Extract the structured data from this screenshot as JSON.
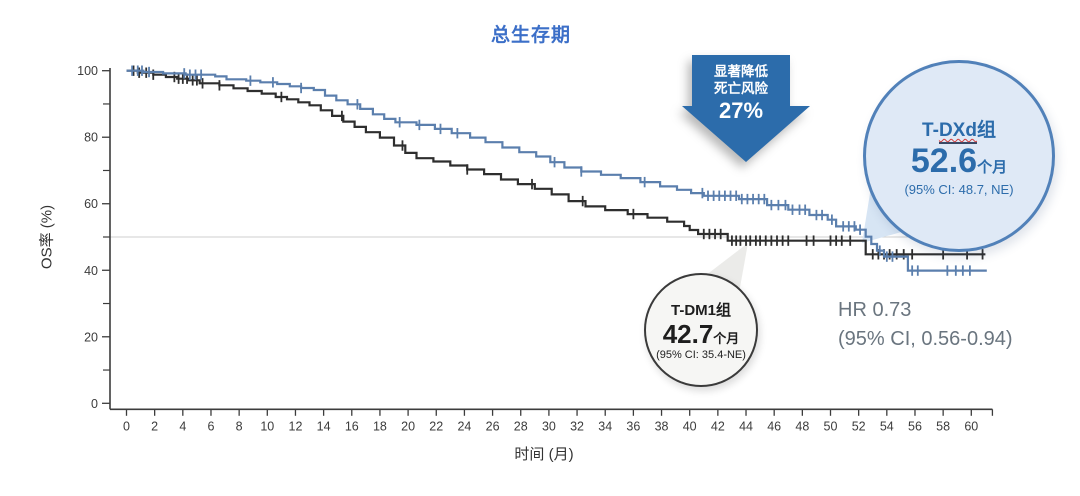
{
  "title": "总生存期",
  "colors": {
    "title": "#3c6fc8",
    "tdxd_curve": "#5b7fad",
    "tdm1_curve": "#2e2e2e",
    "arrow": "#2c6cab",
    "reference_line": "#cfcfcf",
    "axis": "#3c3c3c",
    "hr_text": "#6a757f",
    "tdxd_circle_fill": "#dfe9f6",
    "tdxd_circle_border": "#5181b9",
    "tdm1_circle_fill": "#f6f6f4",
    "tdm1_circle_border": "#3a3a3a",
    "tdxd_callout": "#d7e5f4",
    "tdm1_callout": "#ebebe9"
  },
  "annotations": {
    "arrow": {
      "line1": "显著降低",
      "line2": "死亡风险",
      "line3": "27%"
    },
    "tdxd_circle": {
      "label_prefix": "T-",
      "label_mid": "DXd",
      "label_suffix": "组",
      "value": "52.6",
      "unit": "个月",
      "ci": "(95% CI: 48.7, NE)"
    },
    "tdm1_circle": {
      "label": "T-DM1组",
      "value": "42.7",
      "unit": "个月",
      "ci": "(95% CI: 35.4-NE)"
    },
    "hr": {
      "line1": "HR 0.73",
      "line2": "(95% CI, 0.56-0.94)"
    }
  },
  "chart_data": {
    "type": "line",
    "subtype": "kaplan-meier-step",
    "title": "总生存期",
    "xlabel": "时间 (月)",
    "ylabel": "OS率 (%)",
    "xlim": [
      0,
      61.5
    ],
    "ylim": [
      0,
      100
    ],
    "x_ticks": [
      0,
      2,
      4,
      6,
      8,
      10,
      12,
      14,
      16,
      18,
      20,
      22,
      24,
      26,
      28,
      30,
      32,
      34,
      36,
      38,
      40,
      42,
      44,
      46,
      48,
      50,
      52,
      54,
      56,
      58,
      60
    ],
    "y_ticks_major": [
      0,
      20,
      40,
      60,
      80,
      100
    ],
    "y_ticks_minor": [
      10,
      30,
      50,
      70,
      90
    ],
    "grid": false,
    "reference_line_y": 50,
    "legend_position": "none",
    "series": [
      {
        "name": "T-DXd",
        "median_months": 52.6,
        "median_ci": "48.7, NE",
        "color": "#5b7fad",
        "points": [
          [
            0,
            100
          ],
          [
            1.2,
            99.6
          ],
          [
            2.6,
            99.2
          ],
          [
            4.2,
            98.8
          ],
          [
            6.3,
            98.3
          ],
          [
            7.1,
            97.4
          ],
          [
            8.5,
            97
          ],
          [
            9.5,
            96.5
          ],
          [
            10.7,
            96
          ],
          [
            11.6,
            95.3
          ],
          [
            12.4,
            94.8
          ],
          [
            13.3,
            94.2
          ],
          [
            14.1,
            92.5
          ],
          [
            14.9,
            91.1
          ],
          [
            15.7,
            89.9
          ],
          [
            16.6,
            88.5
          ],
          [
            17.5,
            86.9
          ],
          [
            18.3,
            85.5
          ],
          [
            19.1,
            84.5
          ],
          [
            20.6,
            83.7
          ],
          [
            21.9,
            82.5
          ],
          [
            23.1,
            81.2
          ],
          [
            24.4,
            79.9
          ],
          [
            25.5,
            78.5
          ],
          [
            26.7,
            76.9
          ],
          [
            27.9,
            75.5
          ],
          [
            29.1,
            74.2
          ],
          [
            30.1,
            72.5
          ],
          [
            31.1,
            70.9
          ],
          [
            32.3,
            69.7
          ],
          [
            33.7,
            68.7
          ],
          [
            35.1,
            67.7
          ],
          [
            36.5,
            66.5
          ],
          [
            37.9,
            65.2
          ],
          [
            39.1,
            64.2
          ],
          [
            40.1,
            63.2
          ],
          [
            41,
            62.4
          ],
          [
            43.5,
            61.4
          ],
          [
            45.5,
            59.6
          ],
          [
            47,
            58.2
          ],
          [
            48.5,
            56.6
          ],
          [
            49.8,
            55.2
          ],
          [
            50.4,
            53.2
          ],
          [
            51.8,
            52.2
          ],
          [
            52.5,
            50.1
          ],
          [
            52.9,
            47.9
          ],
          [
            53.3,
            45.9
          ],
          [
            53.8,
            44.1
          ],
          [
            55.5,
            39.9
          ],
          [
            61.1,
            39.9
          ]
        ],
        "censor_times": [
          0.4,
          0.8,
          1.1,
          1.6,
          4.1,
          4.5,
          4.9,
          5.3,
          8.8,
          10.4,
          12.4,
          16.4,
          19.4,
          20.8,
          22.3,
          23.5,
          30.4,
          32.3,
          36.8,
          40.9,
          41.3,
          41.7,
          42.1,
          42.5,
          42.9,
          43.3,
          43.7,
          44.1,
          44.5,
          44.9,
          45.3,
          45.8,
          46.3,
          46.8,
          47.3,
          47.8,
          48.2,
          49,
          49.4,
          50.1,
          50.9,
          51.3,
          51.7,
          52.1,
          53.5,
          54,
          54.4,
          55.8,
          56.2,
          58.3,
          58.9,
          59.4,
          59.9
        ]
      },
      {
        "name": "T-DM1",
        "median_months": 42.7,
        "median_ci": "35.4-NE",
        "color": "#2e2e2e",
        "points": [
          [
            0,
            100
          ],
          [
            0.8,
            99.4
          ],
          [
            1.9,
            98.8
          ],
          [
            2.8,
            98.1
          ],
          [
            3.6,
            97.6
          ],
          [
            4.4,
            97.1
          ],
          [
            5.2,
            96.2
          ],
          [
            6.6,
            95.6
          ],
          [
            7.6,
            94.7
          ],
          [
            8.6,
            93.9
          ],
          [
            9.6,
            93.1
          ],
          [
            10.6,
            92.1
          ],
          [
            11.4,
            91.4
          ],
          [
            12.2,
            90.5
          ],
          [
            13,
            89.6
          ],
          [
            13.8,
            88.1
          ],
          [
            14.6,
            86.4
          ],
          [
            15.4,
            84.7
          ],
          [
            16.2,
            83.1
          ],
          [
            17,
            81.5
          ],
          [
            18,
            79.9
          ],
          [
            19,
            77.5
          ],
          [
            19.8,
            75.3
          ],
          [
            20.6,
            73.7
          ],
          [
            21.8,
            72.7
          ],
          [
            23,
            71.5
          ],
          [
            24.2,
            70.3
          ],
          [
            25.4,
            68.9
          ],
          [
            26.6,
            67.3
          ],
          [
            27.8,
            65.9
          ],
          [
            29,
            64.5
          ],
          [
            30.2,
            62.8
          ],
          [
            31.4,
            60.8
          ],
          [
            32.6,
            59.2
          ],
          [
            34,
            58.1
          ],
          [
            35.6,
            56.9
          ],
          [
            37,
            55.8
          ],
          [
            38.4,
            54.6
          ],
          [
            39.6,
            53.3
          ],
          [
            40,
            52.1
          ],
          [
            40.6,
            50.9
          ],
          [
            42.7,
            48.9
          ],
          [
            52.5,
            44.8
          ],
          [
            61,
            44.8
          ]
        ],
        "censor_times": [
          0.5,
          0.9,
          1.4,
          1.9,
          3.4,
          3.7,
          4,
          4.3,
          4.7,
          5,
          5.4,
          6.6,
          11,
          15.3,
          19.6,
          24.2,
          28.8,
          32.4,
          36,
          41,
          41.4,
          41.8,
          42.2,
          43,
          43.3,
          43.6,
          44,
          44.3,
          44.7,
          45,
          45.4,
          45.8,
          46.2,
          46.6,
          47,
          48.3,
          48.8,
          50,
          50.4,
          50.8,
          51.4,
          53,
          53.4,
          53.8,
          54.2,
          54.7,
          55.2,
          55.8,
          58,
          59.7,
          60.8
        ]
      }
    ]
  }
}
